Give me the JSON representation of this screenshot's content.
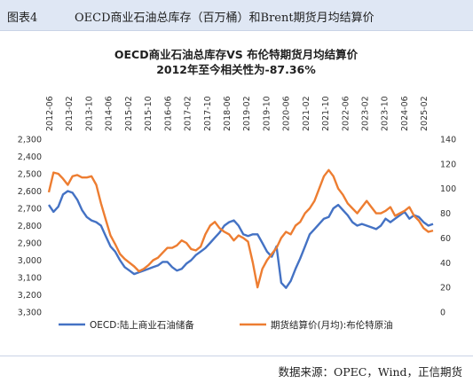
{
  "header": {
    "figure_no": "图表4",
    "title": "OECD商业石油总库存（百万桶）和Brent期货月均结算价"
  },
  "source": "数据来源：OPEC，Wind，正信期货",
  "chart_data": {
    "type": "line",
    "title": "OECD商业石油总库存VS 布伦特期货月均结算价",
    "subtitle": "2012年至今相关性为-87.36%",
    "x_ticks": [
      "2012-06",
      "2012-10",
      "2013-02",
      "2013-06",
      "2013-10",
      "2014-02",
      "2014-06",
      "2014-10",
      "2015-02",
      "2015-06",
      "2015-10",
      "2016-02",
      "2016-06",
      "2016-10",
      "2017-02",
      "2017-06",
      "2017-10",
      "2018-02",
      "2018-06",
      "2018-10",
      "2019-02",
      "2019-06",
      "2019-10",
      "2020-02",
      "2020-06",
      "2020-10",
      "2021-02",
      "2021-06",
      "2021-10",
      "2022-02",
      "2022-06",
      "2022-10",
      "2023-02",
      "2023-06",
      "2023-10",
      "2024-02",
      "2024-06",
      "2024-10",
      "2025-02",
      "2025-06"
    ],
    "x_tick_labels": [
      "2012-06",
      "2013-02",
      "2013-10",
      "2014-06",
      "2015-02",
      "2015-10",
      "2016-06",
      "2017-02",
      "2017-10",
      "2018-06",
      "2019-02",
      "2019-10",
      "2020-06",
      "2021-02",
      "2021-10",
      "2022-06",
      "2023-02",
      "2023-10",
      "2024-06",
      "2025-02"
    ],
    "left_axis": {
      "ticks": [
        "2,300",
        "2,400",
        "2,500",
        "2,600",
        "2,700",
        "2,800",
        "2,900",
        "3,000",
        "3,100",
        "3,200",
        "3,300"
      ],
      "min": 2300,
      "max": 3300,
      "inverted": true
    },
    "right_axis": {
      "ticks": [
        "0",
        "20",
        "40",
        "60",
        "80",
        "100",
        "120",
        "140"
      ],
      "min": 0,
      "max": 140
    },
    "grid": false,
    "legend_position": "bottom",
    "series": [
      {
        "name": "OECD:陆上商业石油储备",
        "axis": "left",
        "color": "#4472c4",
        "values": [
          2680,
          2720,
          2690,
          2620,
          2600,
          2610,
          2650,
          2710,
          2750,
          2770,
          2780,
          2800,
          2860,
          2920,
          2950,
          3000,
          3040,
          3060,
          3080,
          3070,
          3060,
          3050,
          3040,
          3030,
          3010,
          3010,
          3040,
          3060,
          3050,
          3020,
          3000,
          2970,
          2950,
          2930,
          2900,
          2870,
          2840,
          2800,
          2780,
          2770,
          2800,
          2850,
          2860,
          2850,
          2850,
          2900,
          2950,
          2980,
          2920,
          3130,
          3160,
          3120,
          3050,
          2990,
          2920,
          2850,
          2820,
          2790,
          2760,
          2750,
          2700,
          2680,
          2710,
          2740,
          2780,
          2800,
          2790,
          2800,
          2810,
          2820,
          2800,
          2760,
          2780,
          2760,
          2740,
          2720,
          2760,
          2740,
          2750,
          2780,
          2800,
          2790
        ]
      },
      {
        "name": "期货结算价(月均):布伦特原油",
        "axis": "right",
        "color": "#ed7d31",
        "values": [
          97,
          113,
          112,
          108,
          103,
          110,
          111,
          109,
          109,
          110,
          103,
          88,
          75,
          62,
          55,
          47,
          43,
          40,
          37,
          33,
          35,
          38,
          42,
          44,
          48,
          52,
          52,
          54,
          58,
          56,
          51,
          50,
          53,
          63,
          70,
          73,
          68,
          65,
          63,
          58,
          62,
          60,
          57,
          40,
          20,
          35,
          42,
          47,
          52,
          60,
          65,
          63,
          70,
          73,
          80,
          84,
          90,
          100,
          110,
          115,
          110,
          100,
          95,
          88,
          84,
          80,
          85,
          90,
          85,
          80,
          80,
          82,
          85,
          78,
          80,
          82,
          85,
          78,
          74,
          68,
          65,
          66
        ]
      }
    ]
  }
}
